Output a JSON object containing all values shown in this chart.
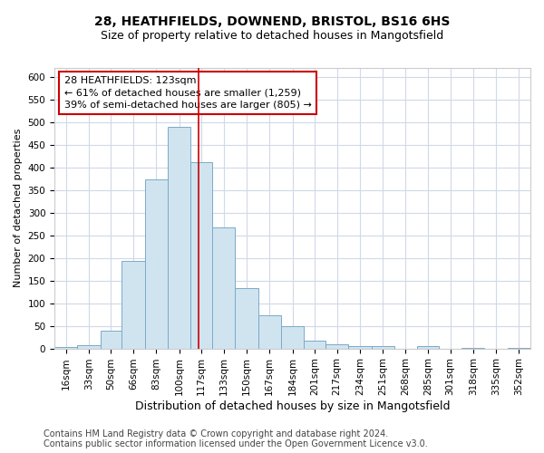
{
  "title_line1": "28, HEATHFIELDS, DOWNEND, BRISTOL, BS16 6HS",
  "title_line2": "Size of property relative to detached houses in Mangotsfield",
  "xlabel": "Distribution of detached houses by size in Mangotsfield",
  "ylabel": "Number of detached properties",
  "bin_labels": [
    "16sqm",
    "33sqm",
    "50sqm",
    "66sqm",
    "83sqm",
    "100sqm",
    "117sqm",
    "133sqm",
    "150sqm",
    "167sqm",
    "184sqm",
    "201sqm",
    "217sqm",
    "234sqm",
    "251sqm",
    "268sqm",
    "285sqm",
    "301sqm",
    "318sqm",
    "335sqm",
    "352sqm"
  ],
  "bar_values": [
    3,
    8,
    40,
    193,
    374,
    490,
    412,
    268,
    133,
    73,
    50,
    17,
    9,
    6,
    6,
    0,
    5,
    0,
    2,
    0,
    2
  ],
  "bar_color": "#d0e4f0",
  "bar_edge_color": "#7aaac8",
  "vline_x": 123,
  "vline_color": "#cc0000",
  "annotation_line1": "28 HEATHFIELDS: 123sqm",
  "annotation_line2": "← 61% of detached houses are smaller (1,259)",
  "annotation_line3": "39% of semi-detached houses are larger (805) →",
  "annotation_box_color": "#ffffff",
  "annotation_box_edge_color": "#cc0000",
  "ylim": [
    0,
    620
  ],
  "yticks": [
    0,
    50,
    100,
    150,
    200,
    250,
    300,
    350,
    400,
    450,
    500,
    550,
    600
  ],
  "bin_edges": [
    16,
    33,
    50,
    66,
    83,
    100,
    117,
    133,
    150,
    167,
    184,
    201,
    217,
    234,
    251,
    268,
    285,
    301,
    318,
    335,
    352,
    369
  ],
  "footer_line1": "Contains HM Land Registry data © Crown copyright and database right 2024.",
  "footer_line2": "Contains public sector information licensed under the Open Government Licence v3.0.",
  "background_color": "#ffffff",
  "plot_bg_color": "#ffffff",
  "grid_color": "#d0d8e8",
  "title1_fontsize": 10,
  "title2_fontsize": 9,
  "xlabel_fontsize": 9,
  "ylabel_fontsize": 8,
  "tick_fontsize": 7.5,
  "annotation_fontsize": 8,
  "footer_fontsize": 7
}
